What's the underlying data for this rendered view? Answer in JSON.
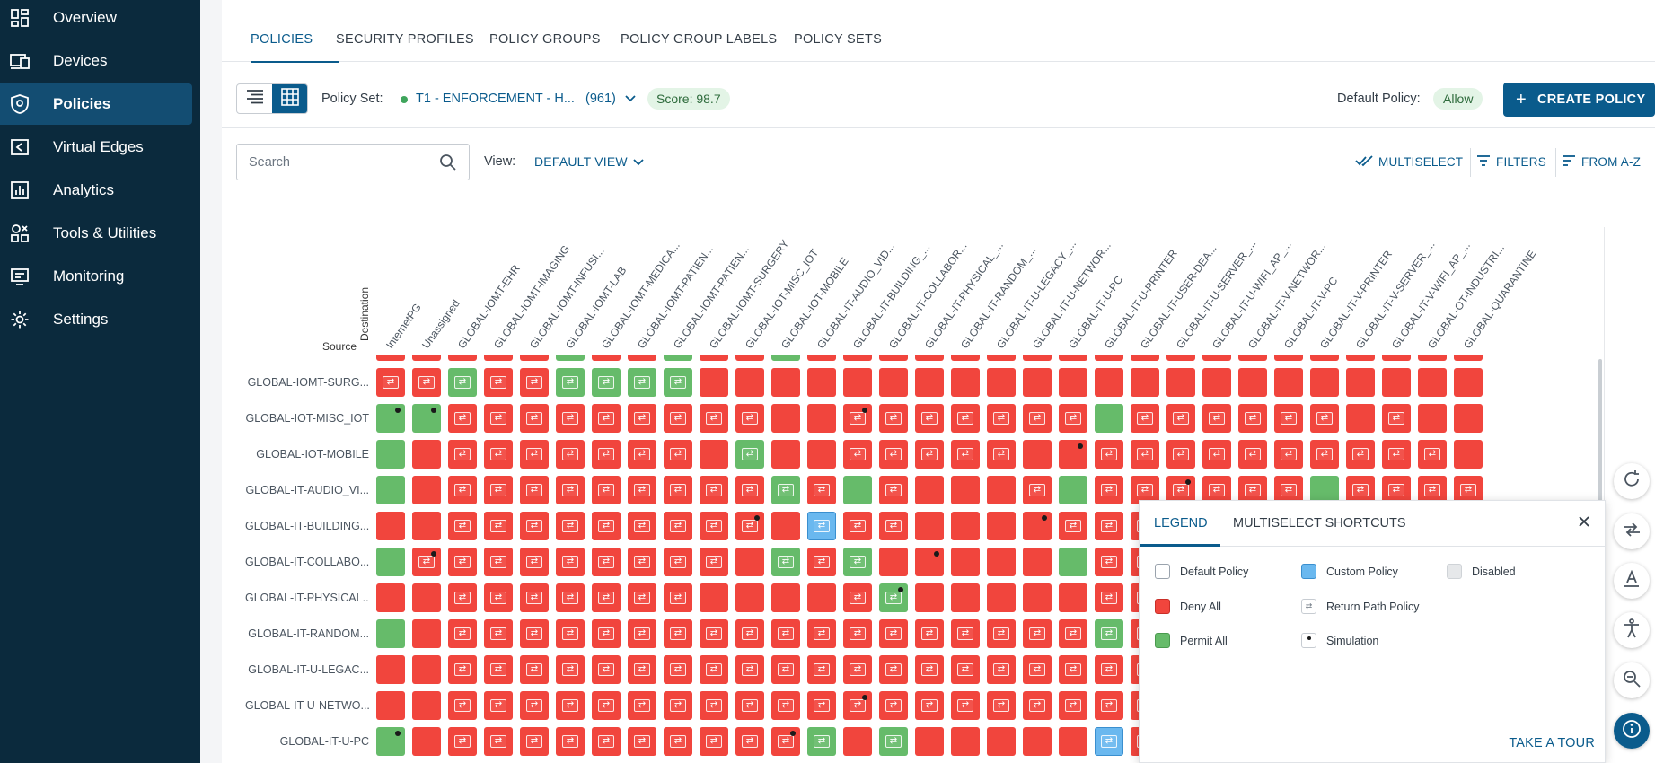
{
  "sidebar": {
    "items": [
      {
        "label": "Overview",
        "icon": "dashboard-icon",
        "active": false
      },
      {
        "label": "Devices",
        "icon": "devices-icon",
        "active": false
      },
      {
        "label": "Policies",
        "icon": "shield-icon",
        "active": true
      },
      {
        "label": "Virtual Edges",
        "icon": "virtual-edge-icon",
        "active": false
      },
      {
        "label": "Analytics",
        "icon": "analytics-icon",
        "active": false
      },
      {
        "label": "Tools & Utilities",
        "icon": "tools-icon",
        "active": false
      },
      {
        "label": "Monitoring",
        "icon": "monitor-icon",
        "active": false
      },
      {
        "label": "Settings",
        "icon": "gear-icon",
        "active": false
      }
    ]
  },
  "tabs": [
    "POLICIES",
    "SECURITY PROFILES",
    "POLICY GROUPS",
    "POLICY GROUP LABELS",
    "POLICY SETS"
  ],
  "toolbar": {
    "policy_set_label": "Policy Set:",
    "policy_set_name": "T1 - ENFORCEMENT - H...",
    "policy_set_count": "(961)",
    "score": "Score: 98.7",
    "default_policy_label": "Default Policy:",
    "default_policy_value": "Allow",
    "create_label": "CREATE POLICY"
  },
  "filterbar": {
    "search_placeholder": "Search",
    "view_label": "View:",
    "view_value": "DEFAULT VIEW",
    "multiselect": "MULTISELECT",
    "filters": "FILTERS",
    "sort": "FROM A-Z"
  },
  "matrix": {
    "source_label": "Source",
    "destination_label": "Destination",
    "columns": [
      "InternetPG",
      "Unassigned",
      "GLOBAL-IOMT-EHR",
      "GLOBAL-IOMT-IMAGING",
      "GLOBAL-IOMT-INFUSI...",
      "GLOBAL-IOMT-LAB",
      "GLOBAL-IOMT-MEDICA...",
      "GLOBAL-IOMT-PATIEN...",
      "GLOBAL-IOMT-PATIEN...",
      "GLOBAL-IOMT-SURGERY",
      "GLOBAL-IOT-MISC_IOT",
      "GLOBAL-IOT-MOBILE",
      "GLOBAL-IT-AUDIO_VID...",
      "GLOBAL-IT-BUILDING_...",
      "GLOBAL-IT-COLLABOR...",
      "GLOBAL-IT-PHYSICAL_...",
      "GLOBAL-IT-RANDOM_...",
      "GLOBAL-IT-U-LEGACY_...",
      "GLOBAL-IT-U-NETWOR...",
      "GLOBAL-IT-U-PC",
      "GLOBAL-IT-U-PRINTER",
      "GLOBAL-IT-USER-DEA...",
      "GLOBAL-IT-U-SERVER_...",
      "GLOBAL-IT-U-WIFI_AP_...",
      "GLOBAL-IT-V-NETWOR...",
      "GLOBAL-IT-V-PC",
      "GLOBAL-IT-V-PRINTER",
      "GLOBAL-IT-V-SERVER_...",
      "GLOBAL-IT-V-WIFI_AP_...",
      "GLOBAL-OT-INDUSTRI...",
      "GLOBAL-QUARANTINE"
    ],
    "top_sliver": "rrrrrgrrgrrgrrrrrrrrrrrrrrrrrrr",
    "rows": [
      {
        "label": "GLOBAL-IOMT-SURG...",
        "cells": "RRGRRGGGGrrrrrrrrrrrrrrrrrrrrrr",
        "sims": []
      },
      {
        "label": "GLOBAL-IOT-MISC_IOT",
        "cells": "ggRRRRRRRRRrrRRRRRRRgRRRRRRrRrr",
        "sims": [
          0,
          1,
          13
        ]
      },
      {
        "label": "GLOBAL-IOT-MOBILE",
        "cells": "grRRRRRRRrGrrRRRRRrrRRRRRRRRRRr",
        "sims": [
          19
        ]
      },
      {
        "label": "GLOBAL-IT-AUDIO_VI...",
        "cells": "grRRRRRRRRRGRgRrrrRgRRRRRRgRRRR",
        "sims": [
          22
        ]
      },
      {
        "label": "GLOBAL-IT-BUILDING...",
        "cells": "rrRRRRRRRRRrBRRrrrrRRRRRRRRRRRr",
        "sims": [
          10,
          18
        ]
      },
      {
        "label": "GLOBAL-IT-COLLABO...",
        "cells": "gRRRRRRRRRrGRGrrrrrgRRRRRRRRRRr",
        "sims": [
          1,
          15
        ]
      },
      {
        "label": "GLOBAL-IT-PHYSICAL...",
        "cells": "rrRRRRRRRrrrrRGrrrrrRRRRRRRRRRr",
        "sims": [
          14
        ]
      },
      {
        "label": "GLOBAL-IT-RANDOM...",
        "cells": "grRRRRRRRRRRRRRRRRRRGRRRRRRRRRR",
        "sims": []
      },
      {
        "label": "GLOBAL-IT-U-LEGAC...",
        "cells": "rrRRRRRRRRRRRRRRRRRRRRRRRRRRRRR",
        "sims": []
      },
      {
        "label": "GLOBAL-IT-U-NETWO...",
        "cells": "rrRRRRRRRRRRRRRRRRRRRRRRRRRRRRR",
        "sims": [
          13
        ]
      },
      {
        "label": "GLOBAL-IT-U-PC",
        "cells": "grRRRRRRRRRRGrGrrrrrBRRRRRRgRRR",
        "sims": [
          0,
          11
        ]
      }
    ]
  },
  "legend": {
    "tabs": [
      "LEGEND",
      "MULTISELECT SHORTCUTS"
    ],
    "items": [
      {
        "label": "Default Policy",
        "swatch": "default"
      },
      {
        "label": "Custom Policy",
        "swatch": "custom"
      },
      {
        "label": "Disabled",
        "swatch": "disabled"
      },
      {
        "label": "Deny All",
        "swatch": "deny"
      },
      {
        "label": "Return Path Policy",
        "swatch": "return"
      },
      {
        "label": "Simulation",
        "swatch": "simulation"
      },
      {
        "label": "Permit All",
        "swatch": "permit"
      }
    ],
    "tour": "TAKE A TOUR"
  },
  "rail": [
    "refresh-icon",
    "compare-arrows-icon",
    "text-format-icon",
    "accessibility-icon",
    "search-zoom-icon",
    "info-icon"
  ],
  "colors": {
    "sidebar": "#0b2a3d",
    "accent": "#0a5b8c",
    "deny": "#f1453d",
    "permit": "#66bb6a",
    "custom": "#6ab8ef"
  }
}
